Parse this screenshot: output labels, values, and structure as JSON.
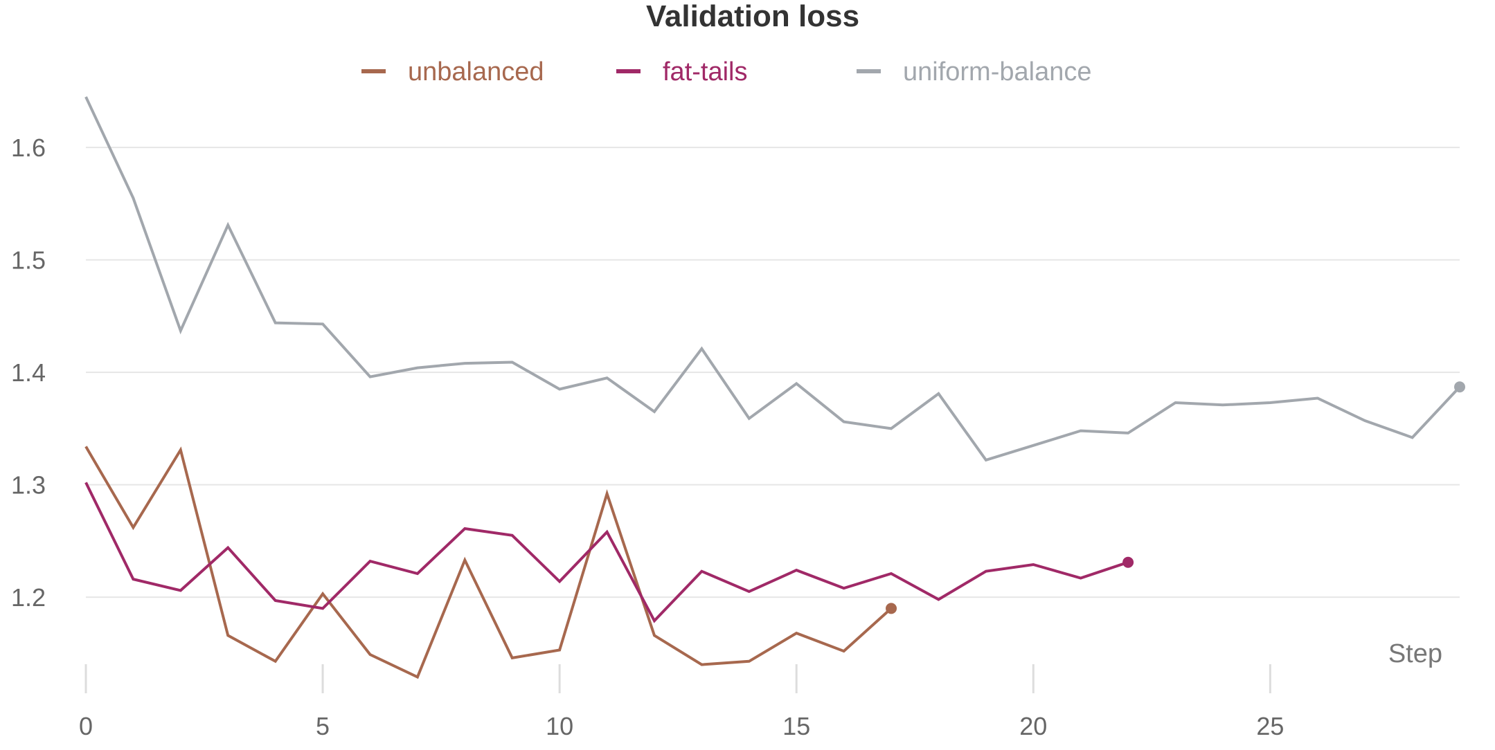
{
  "chart_data": {
    "type": "line",
    "title": "Validation loss",
    "xlabel": "Step",
    "ylabel": "",
    "xlim": [
      0,
      29
    ],
    "ylim": [
      1.125,
      1.645
    ],
    "x_ticks": [
      0,
      5,
      10,
      15,
      20,
      25
    ],
    "y_ticks": [
      1.2,
      1.3,
      1.4,
      1.5,
      1.6
    ],
    "grid": "horizontal",
    "legend_position": "top-center",
    "series": [
      {
        "name": "unbalanced",
        "color": "#a7684e",
        "x": [
          0,
          1,
          2,
          3,
          4,
          5,
          6,
          7,
          8,
          9,
          10,
          11,
          12,
          13,
          14,
          15,
          16,
          17
        ],
        "values": [
          1.334,
          1.262,
          1.331,
          1.166,
          1.143,
          1.203,
          1.149,
          1.129,
          1.233,
          1.146,
          1.153,
          1.292,
          1.166,
          1.14,
          1.143,
          1.168,
          1.152,
          1.19
        ]
      },
      {
        "name": "fat-tails",
        "color": "#a02967",
        "x": [
          0,
          1,
          2,
          3,
          4,
          5,
          6,
          7,
          8,
          9,
          10,
          11,
          12,
          13,
          14,
          15,
          16,
          17,
          18,
          19,
          20,
          21,
          22
        ],
        "values": [
          1.302,
          1.216,
          1.206,
          1.244,
          1.197,
          1.19,
          1.232,
          1.221,
          1.261,
          1.255,
          1.214,
          1.258,
          1.179,
          1.223,
          1.205,
          1.224,
          1.208,
          1.221,
          1.198,
          1.223,
          1.229,
          1.217,
          1.231
        ]
      },
      {
        "name": "uniform-balance",
        "color": "#a2a7ad",
        "x": [
          0,
          1,
          2,
          3,
          4,
          5,
          6,
          7,
          8,
          9,
          10,
          11,
          12,
          13,
          14,
          15,
          16,
          17,
          18,
          19,
          20,
          21,
          22,
          23,
          24,
          25,
          26,
          27,
          28,
          29
        ],
        "values": [
          1.645,
          1.555,
          1.437,
          1.531,
          1.444,
          1.443,
          1.396,
          1.404,
          1.408,
          1.409,
          1.385,
          1.395,
          1.365,
          1.421,
          1.359,
          1.39,
          1.356,
          1.35,
          1.381,
          1.322,
          1.335,
          1.348,
          1.346,
          1.373,
          1.371,
          1.373,
          1.377,
          1.357,
          1.342,
          1.387
        ]
      }
    ]
  }
}
